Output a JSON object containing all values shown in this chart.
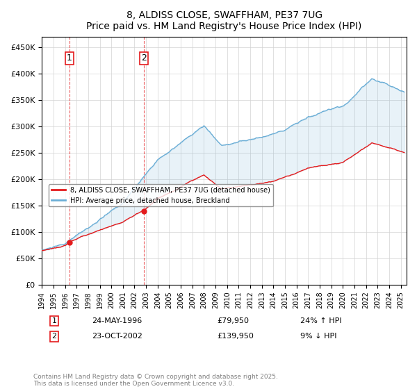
{
  "title": "8, ALDISS CLOSE, SWAFFHAM, PE37 7UG",
  "subtitle": "Price paid vs. HM Land Registry's House Price Index (HPI)",
  "ylabel_ticks": [
    "£0",
    "£50K",
    "£100K",
    "£150K",
    "£200K",
    "£250K",
    "£300K",
    "£350K",
    "£400K",
    "£450K"
  ],
  "ytick_vals": [
    0,
    50000,
    100000,
    150000,
    200000,
    250000,
    300000,
    350000,
    400000,
    450000
  ],
  "ylim": [
    0,
    470000
  ],
  "xlim_start": 1994.0,
  "xlim_end": 2025.5,
  "hpi_color": "#6baed6",
  "price_color": "#e41a1c",
  "sale1_x": 1996.39,
  "sale1_y": 79950,
  "sale1_label": "1",
  "sale1_date": "24-MAY-1996",
  "sale1_price": "£79,950",
  "sale1_hpi": "24% ↑ HPI",
  "sale2_x": 2002.81,
  "sale2_y": 139950,
  "sale2_label": "2",
  "sale2_date": "23-OCT-2002",
  "sale2_price": "£139,950",
  "sale2_hpi": "9% ↓ HPI",
  "legend_label_price": "8, ALDISS CLOSE, SWAFFHAM, PE37 7UG (detached house)",
  "legend_label_hpi": "HPI: Average price, detached house, Breckland",
  "footer": "Contains HM Land Registry data © Crown copyright and database right 2025.\nThis data is licensed under the Open Government Licence v3.0.",
  "xtick_years": [
    1994,
    1995,
    1996,
    1997,
    1998,
    1999,
    2000,
    2001,
    2002,
    2003,
    2004,
    2005,
    2006,
    2007,
    2008,
    2009,
    2010,
    2011,
    2012,
    2013,
    2014,
    2015,
    2016,
    2017,
    2018,
    2019,
    2020,
    2021,
    2022,
    2023,
    2024,
    2025
  ]
}
